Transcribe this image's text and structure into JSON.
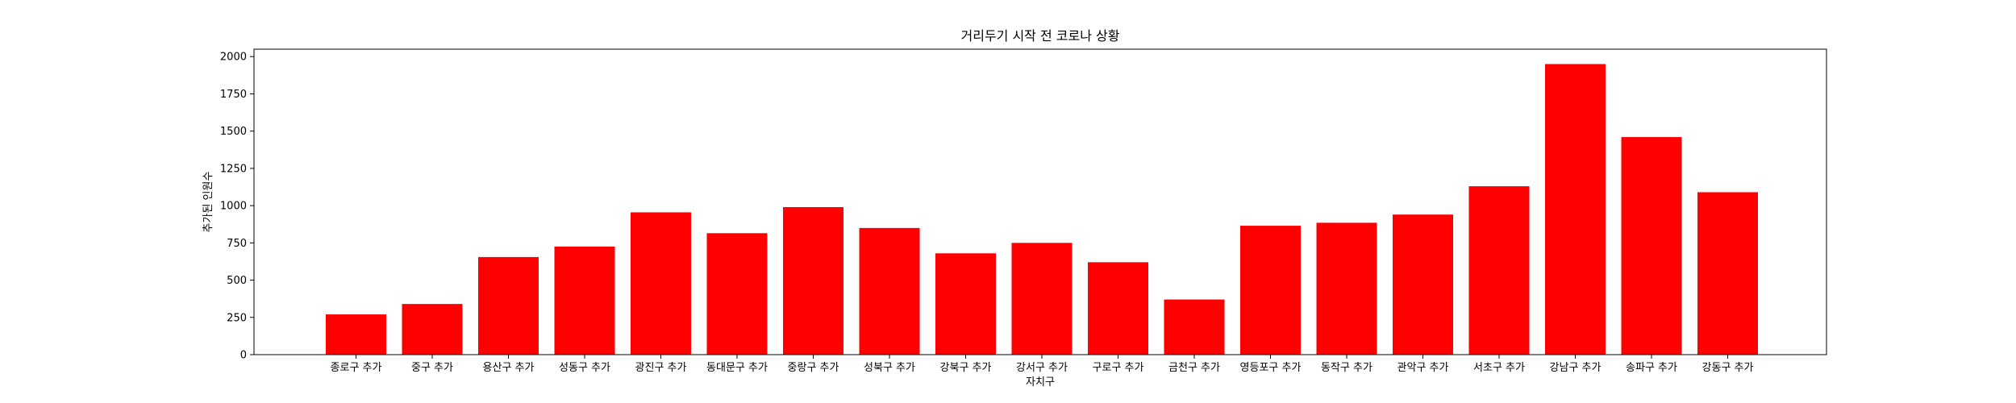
{
  "chart_data": {
    "type": "bar",
    "title": "거리두기 시작 전 코로나 상황",
    "xlabel": "자치구",
    "ylabel": "추가된 인원수",
    "categories": [
      "종로구 추가",
      "중구 추가",
      "용산구 추가",
      "성동구 추가",
      "광진구 추가",
      "동대문구 추가",
      "중랑구 추가",
      "성북구 추가",
      "강북구 추가",
      "강서구 추가",
      "구로구 추가",
      "금천구 추가",
      "영등포구 추가",
      "동작구 추가",
      "관악구 추가",
      "서초구 추가",
      "강남구 추가",
      "송파구 추가",
      "강동구 추가"
    ],
    "values": [
      270,
      340,
      655,
      725,
      955,
      815,
      990,
      850,
      680,
      750,
      620,
      370,
      865,
      885,
      940,
      1130,
      1950,
      1460,
      1090
    ],
    "ylim": [
      0,
      2050
    ],
    "yticks": [
      "0",
      "250",
      "500",
      "750",
      "1000",
      "1250",
      "1500",
      "1750",
      "2000"
    ],
    "bar_color": "#ff0000",
    "grid": false,
    "legend": "none"
  }
}
